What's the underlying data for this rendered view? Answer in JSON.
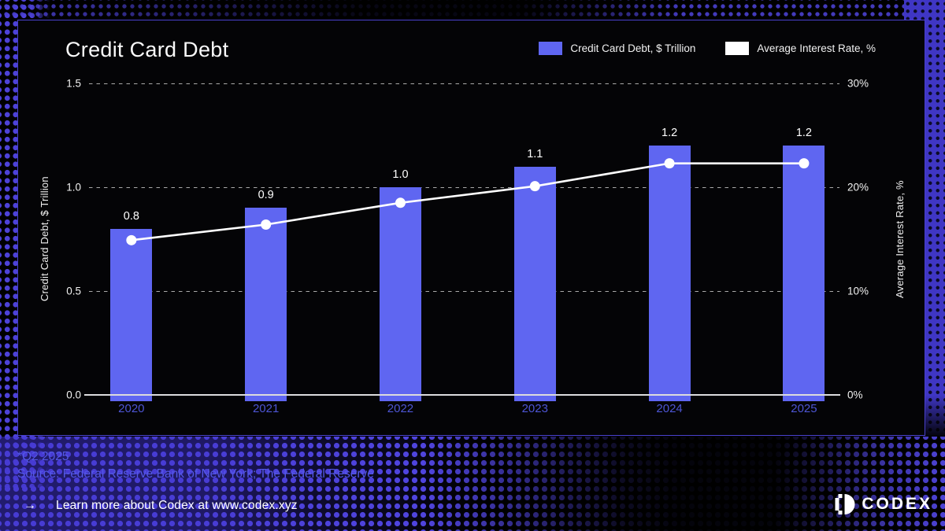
{
  "panel": {
    "title": "Credit Card Debt"
  },
  "colors": {
    "bar_blue": "#5F66F1",
    "line_white": "#FFFFFF",
    "x_label_blue": "#4D55D4",
    "footer_blue": "#5458E8",
    "panel_border_purple": "#4A41CF",
    "background": "#000000"
  },
  "chart_data": {
    "type": "bar",
    "title": "Credit Card Debt",
    "categories": [
      "2020",
      "2021",
      "2022",
      "2023",
      "2024",
      "2025"
    ],
    "series": [
      {
        "name": "Credit Card Debt, $ Trillion",
        "type": "bar",
        "axis": "left",
        "color": "#5F66F1",
        "values": [
          0.8,
          0.9,
          1.0,
          1.1,
          1.2,
          1.2
        ],
        "labels": [
          "0.8",
          "0.9",
          "1.0",
          "1.1",
          "1.2",
          "1.2"
        ]
      },
      {
        "name": "Average Interest Rate, %",
        "type": "line",
        "axis": "right",
        "color": "#FFFFFF",
        "values": [
          14.9,
          16.4,
          18.5,
          20.1,
          22.3,
          22.3
        ]
      }
    ],
    "left_axis": {
      "label": "Credit Card Debt, $ Trillion",
      "ticks": [
        "0.0",
        "0.5",
        "1.0",
        "1.5"
      ],
      "tick_values": [
        0,
        0.5,
        1.0,
        1.5
      ],
      "min": 0,
      "max": 1.5
    },
    "right_axis": {
      "label": "Average Interest Rate, %",
      "ticks": [
        "0%",
        "10%",
        "20%",
        "30%"
      ],
      "tick_values": [
        0,
        10,
        20,
        30
      ],
      "min": 0,
      "max": 30
    },
    "grid": "dashed horizontal",
    "legend_position": "top-right"
  },
  "footer": {
    "note": "*Q2 2025",
    "source": "Source: Federal Reserve Bank of New York; The Federal Reserve"
  },
  "bottom_bar": {
    "arrow": "→",
    "text": "Learn more about Codex at www.codex.xyz"
  },
  "logo": {
    "text": "CODEX"
  }
}
